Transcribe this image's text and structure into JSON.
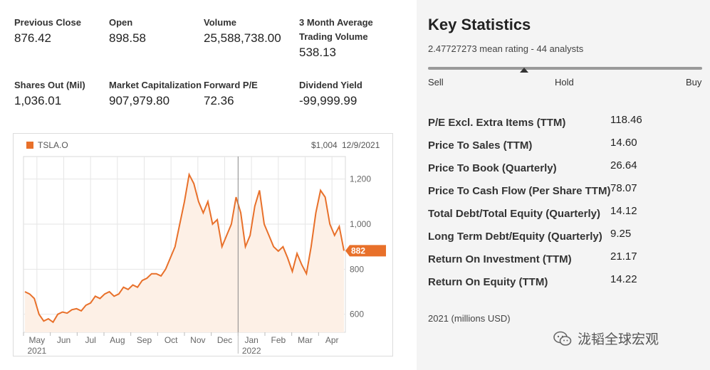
{
  "stats": [
    {
      "label": "Previous Close",
      "value": "876.42"
    },
    {
      "label": "Open",
      "value": "898.58"
    },
    {
      "label": "Volume",
      "value": "25,588,738.00"
    },
    {
      "label": "3 Month Average Trading Volume",
      "value": "538.13"
    },
    {
      "label": "Shares Out (Mil)",
      "value": "1,036.01"
    },
    {
      "label": "Market Capitalization",
      "value": "907,979.80"
    },
    {
      "label": "Forward P/E",
      "value": "72.36"
    },
    {
      "label": "Dividend Yield",
      "value": "-99,999.99"
    }
  ],
  "chart_header": {
    "ticker": "TSLA.O",
    "hover_price": "$1,004",
    "hover_date": "12/9/2021"
  },
  "chart_data": {
    "type": "area",
    "title": "TSLA.O",
    "series": [
      {
        "name": "TSLA.O",
        "values": [
          700,
          690,
          670,
          600,
          570,
          580,
          565,
          600,
          610,
          605,
          620,
          625,
          615,
          640,
          650,
          680,
          670,
          690,
          700,
          680,
          690,
          720,
          710,
          730,
          720,
          750,
          760,
          780,
          780,
          770,
          800,
          850,
          900,
          1000,
          1100,
          1220,
          1180,
          1100,
          1050,
          1100,
          1000,
          1020,
          900,
          950,
          1000,
          1120,
          1050,
          900,
          950,
          1080,
          1150,
          1000,
          950,
          900,
          880,
          900,
          850,
          790,
          870,
          820,
          780,
          900,
          1050,
          1150,
          1120,
          1000,
          950,
          990,
          882
        ]
      }
    ],
    "x_labels": [
      "May",
      "Jun",
      "Jul",
      "Aug",
      "Sep",
      "Oct",
      "Nov",
      "Dec",
      "Jan",
      "Feb",
      "Mar",
      "Apr"
    ],
    "year_labels": [
      "2021",
      "2022"
    ],
    "y_ticks": [
      600,
      800,
      1000,
      1200
    ],
    "y_tick_labels": [
      "600",
      "800",
      "1,000",
      "1,200"
    ],
    "ylim": [
      520,
      1300
    ],
    "last_price": 882,
    "last_price_label": "882",
    "hover_value": 1004,
    "colors": {
      "line": "#e8702a",
      "fill": "#fdf0e6",
      "grid": "#e6e6e6"
    }
  },
  "key_stats": {
    "title": "Key Statistics",
    "rating_text": "2.47727273 mean rating - 44 analysts",
    "rating_labels": {
      "sell": "Sell",
      "hold": "Hold",
      "buy": "Buy"
    },
    "mean_rating": 2.47727273,
    "rows": [
      {
        "label": "P/E Excl. Extra Items (TTM)",
        "value": "118.46"
      },
      {
        "label": "Price To Sales (TTM)",
        "value": "14.60"
      },
      {
        "label": "Price To Book (Quarterly)",
        "value": "26.64"
      },
      {
        "label": "Price To Cash Flow (Per Share TTM)",
        "value": "78.07"
      },
      {
        "label": "Total Debt/Total Equity (Quarterly)",
        "value": "14.12"
      },
      {
        "label": "Long Term Debt/Equity (Quarterly)",
        "value": "9.25"
      },
      {
        "label": "Return On Investment (TTM)",
        "value": "21.17"
      },
      {
        "label": "Return On Equity (TTM)",
        "value": "14.22"
      }
    ],
    "note": "2021 (millions USD)"
  },
  "watermark": {
    "text": "泷韬全球宏观",
    "icon": "wechat-icon"
  }
}
